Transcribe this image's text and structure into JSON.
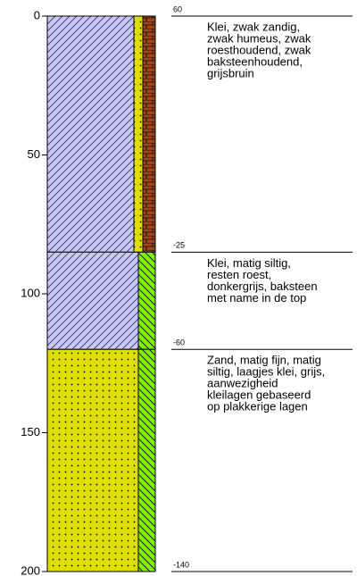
{
  "depth_axis": {
    "range": [
      0,
      200
    ],
    "ticks": [
      0,
      50,
      100,
      150,
      200
    ]
  },
  "layers": [
    {
      "top": 0,
      "bottom": 85,
      "level": "60",
      "description": [
        "Klei, zwak zandig,",
        "zwak humeus, zwak",
        "roesthoudend, zwak",
        "baksteenhoudend,",
        "grijsbruin"
      ]
    },
    {
      "top": 85,
      "bottom": 120,
      "level": "-25",
      "description": [
        "Klei, matig siltig,",
        "resten roest,",
        "donkergrijs, baksteen",
        "met name in de top"
      ]
    },
    {
      "top": 120,
      "bottom": 200,
      "level": "-60",
      "description": [
        "Zand, matig fijn, matig",
        "siltig, laagjes klei, grijs,",
        "aanwezigheid",
        "kleilagen gebaseerd",
        "op plakkerige lagen"
      ]
    }
  ],
  "base_level": "-140"
}
